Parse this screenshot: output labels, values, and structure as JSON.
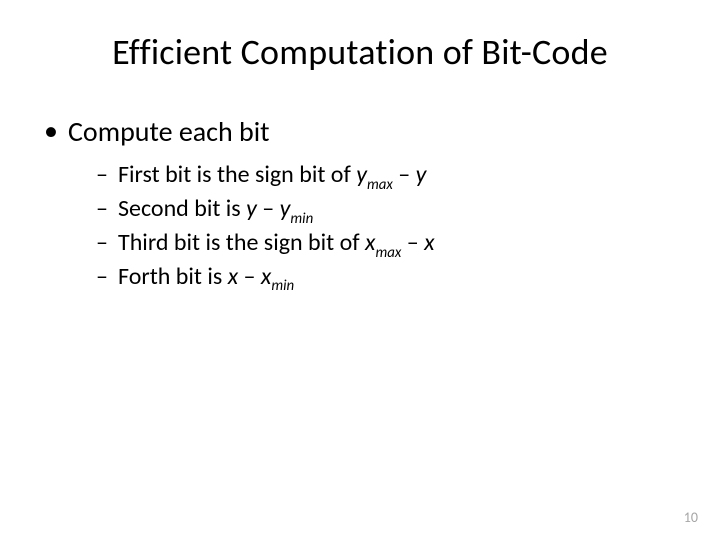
{
  "title": "Efficient Computation of Bit-Code",
  "l1": {
    "bullet": "•",
    "text": "Compute each bit"
  },
  "sub": [
    {
      "dash": "–",
      "pre": "First bit is the sign bit of ",
      "var1": "y",
      "sub1": "max",
      "mid": " – ",
      "var2": "y",
      "sub2": ""
    },
    {
      "dash": "–",
      "pre": "Second bit is ",
      "var1": "y",
      "sub1": "",
      "mid": " – ",
      "var2": "y",
      "sub2": "min"
    },
    {
      "dash": "–",
      "pre": "Third bit is the sign bit of ",
      "var1": "x",
      "sub1": "max",
      "mid": " – ",
      "var2": "x",
      "sub2": ""
    },
    {
      "dash": "–",
      "pre": "Forth bit is ",
      "var1": "x",
      "sub1": "",
      "mid": " – ",
      "var2": "x",
      "sub2": "min"
    }
  ],
  "pagenum": "10",
  "colors": {
    "text": "#000000",
    "bg": "#ffffff",
    "pagenum": "#a6a6a6"
  },
  "fonts": {
    "title_size": 36,
    "l1_size": 28,
    "l2_size": 24,
    "pagenum_size": 14
  }
}
